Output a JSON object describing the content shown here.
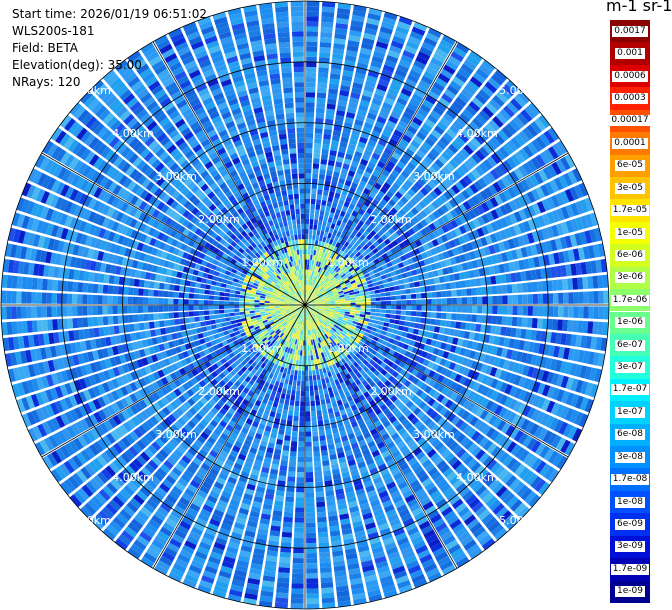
{
  "header": {
    "start_time": "Start time: 2026/01/19 06:51:02",
    "instrument": "WLS200s-181",
    "field": "Field: BETA",
    "elevation": "Elevation(deg): 35.00",
    "nrays": "NRays: 120"
  },
  "colorbar": {
    "title": "m-1 sr-1",
    "labels": [
      "0.0017",
      "0.001",
      "0.0006",
      "0.0003",
      "0.00017",
      "0.0001",
      "6e-05",
      "3e-05",
      "1.7e-05",
      "1e-05",
      "6e-06",
      "3e-06",
      "1.7e-06",
      "1e-06",
      "6e-07",
      "3e-07",
      "1.7e-07",
      "1e-07",
      "6e-08",
      "3e-08",
      "1.7e-08",
      "1e-08",
      "6e-09",
      "3e-09",
      "1.7e-09",
      "1e-09"
    ],
    "colors": [
      "#8b0000",
      "#b20000",
      "#dd0000",
      "#ff2000",
      "#ff5000",
      "#ff7a00",
      "#ffa000",
      "#ffc400",
      "#ffe400",
      "#f4ff00",
      "#d2ff1e",
      "#b0ff46",
      "#8cff6a",
      "#68ff8e",
      "#44ffb4",
      "#22ffdc",
      "#00f0ff",
      "#00d2ff",
      "#00b0ff",
      "#0090ff",
      "#0070ff",
      "#0050ff",
      "#0030f0",
      "#0010d8",
      "#0000b4",
      "#000090"
    ]
  },
  "chart_data": {
    "type": "heatmap",
    "subtype": "polar-ppi",
    "field": "BETA",
    "instrument": "WLS200s-181",
    "elevation_deg": 35.0,
    "n_rays": 120,
    "range_ring_labels": [
      "1.00km",
      "2.00km",
      "3.00km",
      "4.00km",
      "5.00km"
    ],
    "range_rings_km": [
      1,
      2,
      3,
      4,
      5
    ],
    "max_range_km": 5.0,
    "colorbar_units": "m-1 sr-1",
    "typical_value_far_field": "3e-08",
    "near_field_max": "1.7e-06"
  }
}
